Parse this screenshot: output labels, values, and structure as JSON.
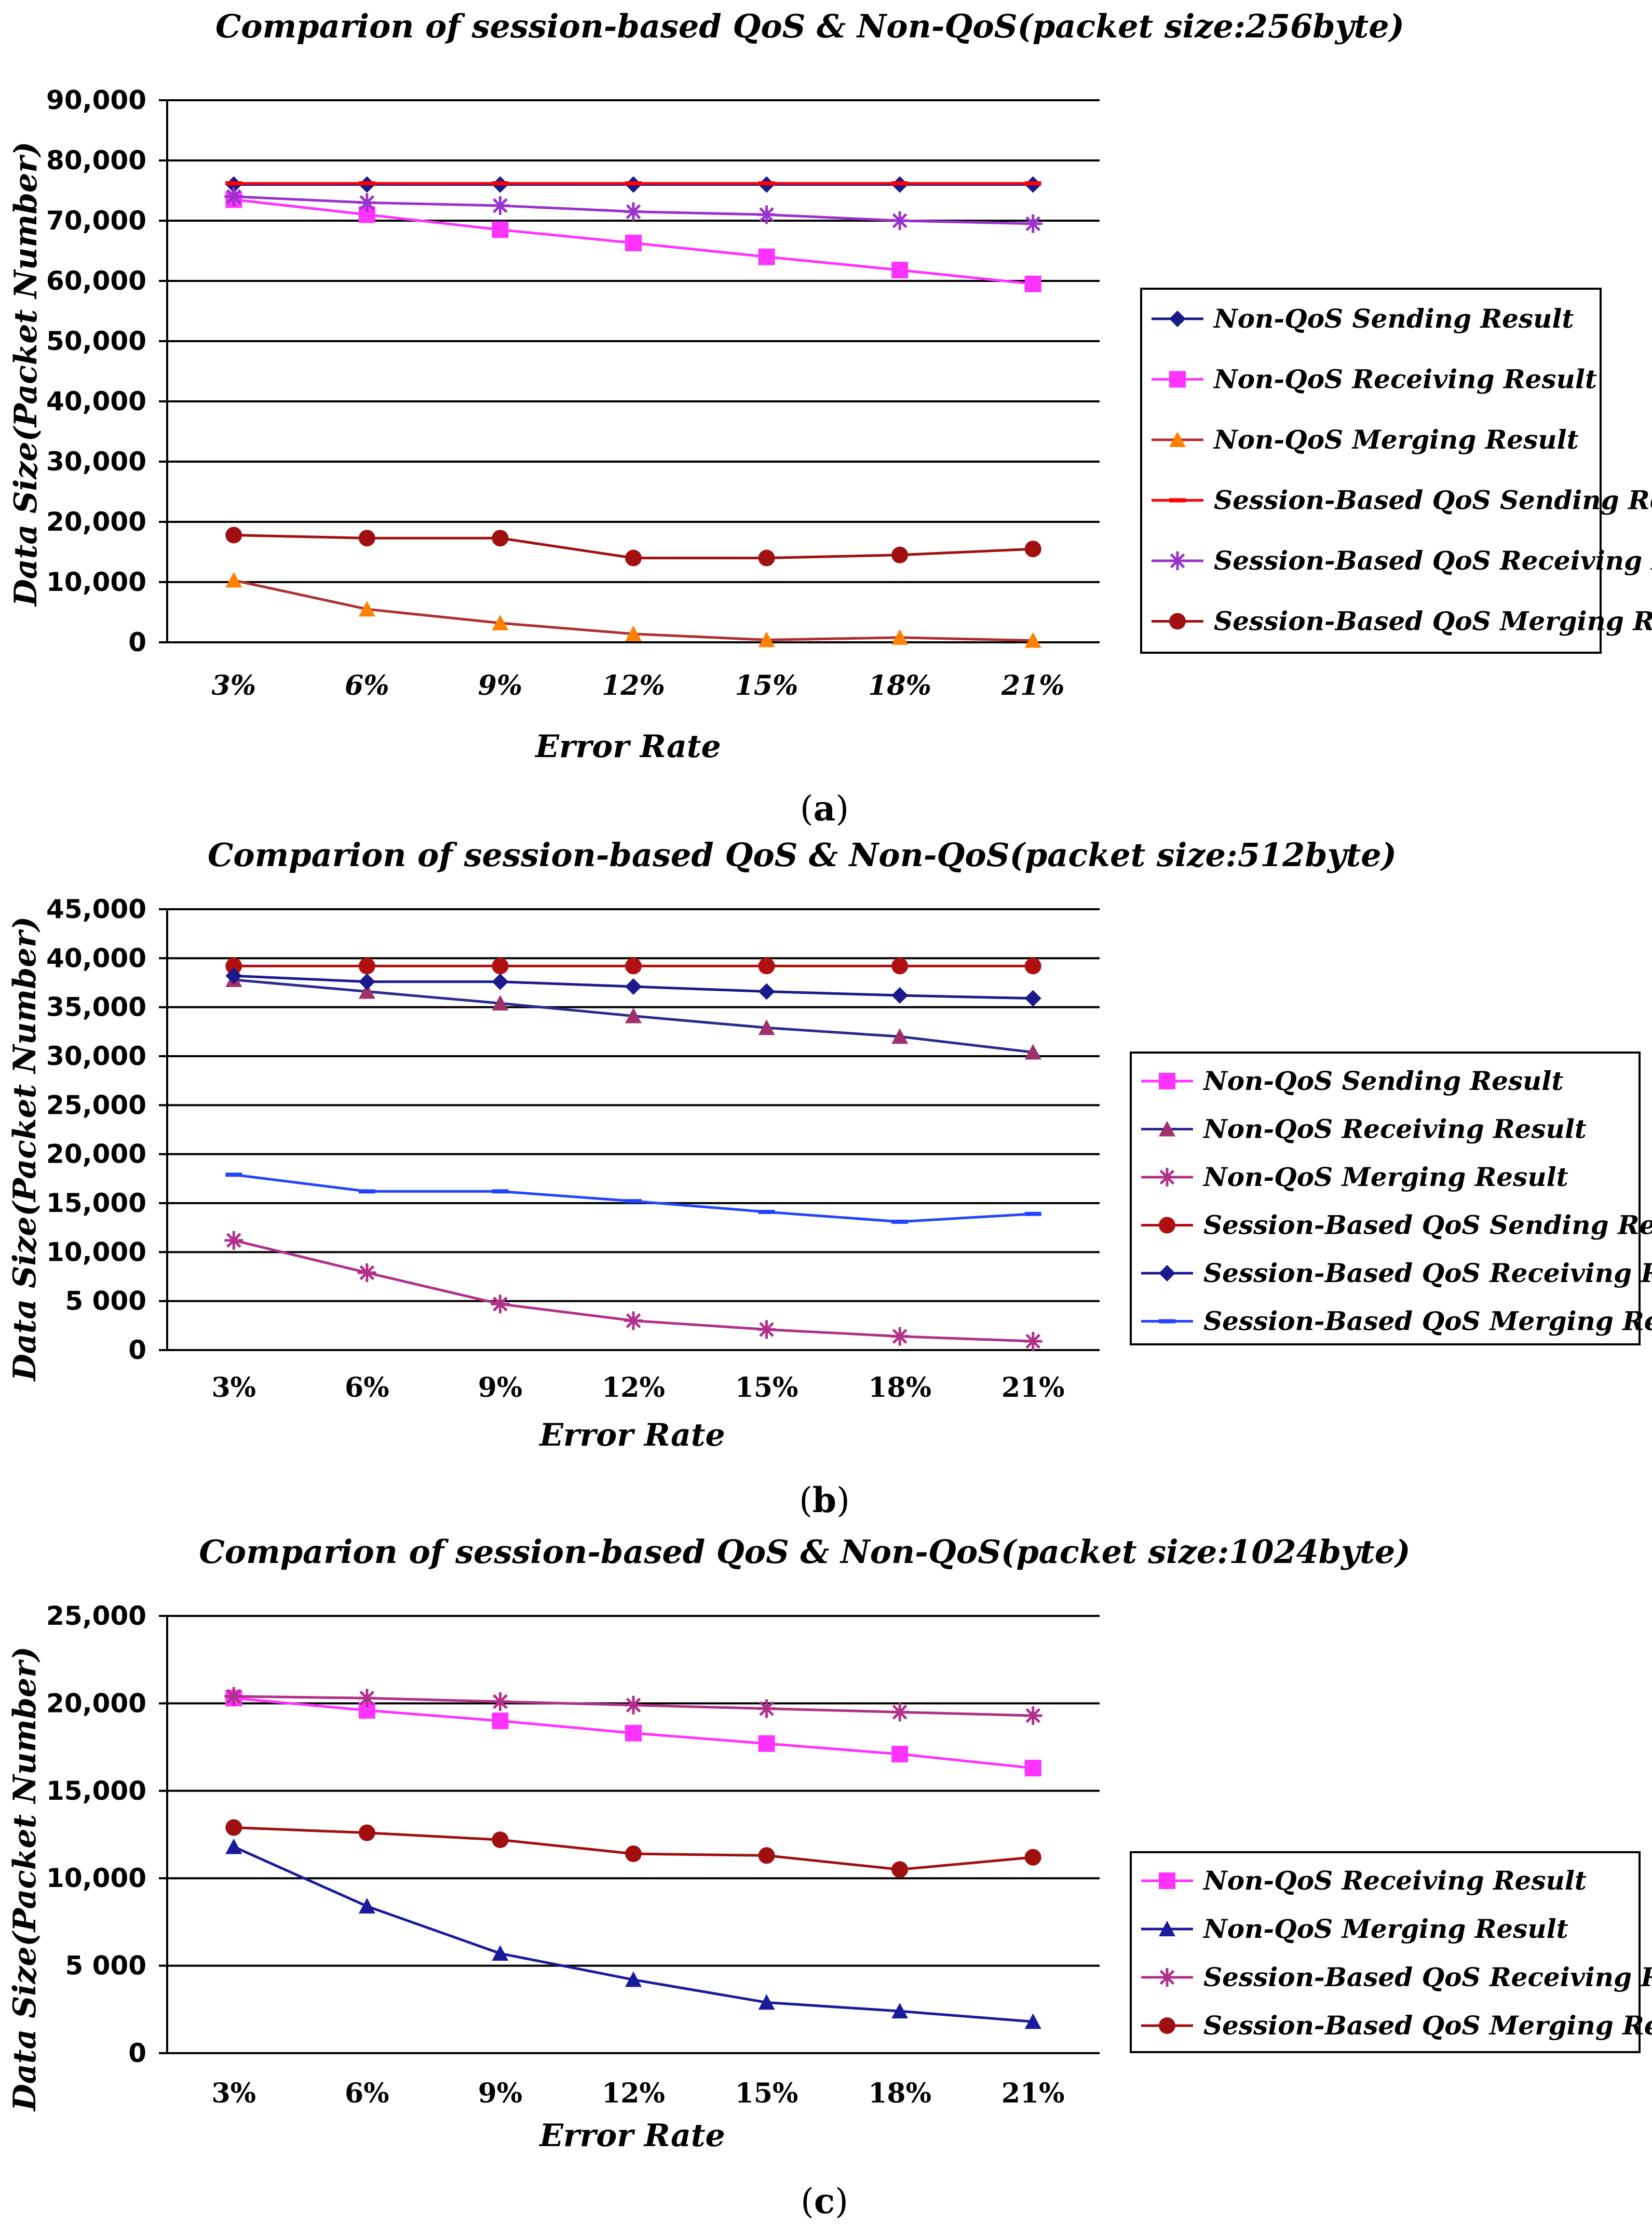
{
  "chart_data": [
    {
      "type": "line",
      "title": "Comparion of session-based QoS & Non-QoS(packet size:256byte)",
      "xlabel": "Error Rate",
      "ylabel": "Data Size(Packet Number)",
      "caption": "a",
      "categories": [
        "3%",
        "6%",
        "9%",
        "12%",
        "15%",
        "18%",
        "21%"
      ],
      "ylim": [
        0,
        90000
      ],
      "yticks": [
        0,
        10000,
        20000,
        30000,
        40000,
        50000,
        60000,
        70000,
        80000,
        90000
      ],
      "ytick_labels": [
        "0",
        "10,000",
        "20,000",
        "30,000",
        "40,000",
        "50,000",
        "60,000",
        "70,000",
        "80,000",
        "90,000"
      ],
      "italic_x_ticks": true,
      "series": [
        {
          "name": "Non-QoS  Sending Result",
          "values": [
            76000,
            76000,
            76000,
            76000,
            76000,
            76000,
            76000
          ],
          "color": "#1a1a8c",
          "marker": "diamond"
        },
        {
          "name": "Non-QoS  Receiving Result",
          "values": [
            73500,
            71000,
            68500,
            66300,
            64000,
            61800,
            59500
          ],
          "color": "#ff33ff",
          "marker": "square"
        },
        {
          "name": "Non-QoS  Merging Result",
          "values": [
            10300,
            5500,
            3200,
            1400,
            400,
            800,
            300
          ],
          "color": "#ff8000",
          "line_color": "#b03030",
          "marker": "triangle"
        },
        {
          "name": "Session-Based QoS Sending Result",
          "values": [
            76200,
            76200,
            76200,
            76200,
            76200,
            76200,
            76200
          ],
          "color": "#ff0000",
          "marker": "dash"
        },
        {
          "name": "Session-Based QoS Receiving Result",
          "values": [
            74000,
            73000,
            72500,
            71500,
            71000,
            70000,
            69500
          ],
          "color": "#9933cc",
          "marker": "star"
        },
        {
          "name": "Session-Based QoS Merging Result",
          "values": [
            17800,
            17300,
            17300,
            14000,
            14000,
            14500,
            15500
          ],
          "color": "#a01010",
          "marker": "circle"
        }
      ]
    },
    {
      "type": "line",
      "title": "Comparion of session-based QoS & Non-QoS(packet size:512byte)",
      "xlabel": "Error Rate",
      "ylabel": "Data Size(Packet Number)",
      "caption": "b",
      "categories": [
        "3%",
        "6%",
        "9%",
        "12%",
        "15%",
        "18%",
        "21%"
      ],
      "ylim": [
        0,
        45000
      ],
      "yticks": [
        0,
        5000,
        10000,
        15000,
        20000,
        25000,
        30000,
        35000,
        40000,
        45000
      ],
      "ytick_labels": [
        "0",
        "5 000",
        "10,000",
        "15,000",
        "20,000",
        "25,000",
        "30,000",
        "35,000",
        "40,000",
        "45,000"
      ],
      "italic_x_ticks": false,
      "series": [
        {
          "name": "Non-QoS  Sending Result",
          "values": [
            39200,
            39200,
            39200,
            39200,
            39200,
            39200,
            39200
          ],
          "color": "#ff33ff",
          "marker": "square",
          "in_legend_only": true
        },
        {
          "name": "Non-QoS  Receiving Result",
          "values": [
            37800,
            36600,
            35400,
            34100,
            32900,
            32000,
            30400
          ],
          "color": "#a0306a",
          "line_color": "#2a2a90",
          "marker": "triangle"
        },
        {
          "name": "Non-QoS  Merging Result",
          "values": [
            11200,
            7900,
            4700,
            3000,
            2100,
            1400,
            900
          ],
          "color": "#b0308a",
          "marker": "star"
        },
        {
          "name": "Session-Based QoS Sending Result",
          "values": [
            39200,
            39200,
            39200,
            39200,
            39200,
            39200,
            39200
          ],
          "color": "#b01010",
          "marker": "circle"
        },
        {
          "name": "Session-Based QoS Receiving Result",
          "values": [
            38200,
            37600,
            37600,
            37100,
            36600,
            36200,
            35900
          ],
          "color": "#1a1a8c",
          "marker": "diamond"
        },
        {
          "name": "Session-Based QoS Merging Result",
          "values": [
            17900,
            16200,
            16200,
            15200,
            14100,
            13100,
            13900
          ],
          "color": "#2244ff",
          "marker": "dash"
        }
      ]
    },
    {
      "type": "line",
      "title": "Comparion of session-based QoS & Non-QoS(packet size:1024byte)",
      "xlabel": "Error Rate",
      "ylabel": "Data Size(Packet Number)",
      "caption": "c",
      "categories": [
        "3%",
        "6%",
        "9%",
        "12%",
        "15%",
        "18%",
        "21%"
      ],
      "ylim": [
        0,
        25000
      ],
      "yticks": [
        0,
        5000,
        10000,
        15000,
        20000,
        25000
      ],
      "ytick_labels": [
        "0",
        "5 000",
        "10,000",
        "15,000",
        "20,000",
        "25,000"
      ],
      "italic_x_ticks": false,
      "series": [
        {
          "name": "Non-QoS  Receiving Result",
          "values": [
            20300,
            19600,
            19000,
            18300,
            17700,
            17100,
            16300
          ],
          "color": "#ff33ff",
          "marker": "square"
        },
        {
          "name": "Non-QoS  Merging Result",
          "values": [
            11800,
            8400,
            5700,
            4200,
            2900,
            2400,
            1800
          ],
          "color": "#1a1a9c",
          "marker": "triangle"
        },
        {
          "name": "Session-Based QoS Receiving Result",
          "values": [
            20400,
            20300,
            20100,
            19900,
            19700,
            19500,
            19300
          ],
          "color": "#b0308a",
          "marker": "star"
        },
        {
          "name": "Session-Based QoS Merging Result",
          "values": [
            12900,
            12600,
            12200,
            11400,
            11300,
            10500,
            11200
          ],
          "color": "#a01010",
          "marker": "circle"
        }
      ]
    }
  ]
}
